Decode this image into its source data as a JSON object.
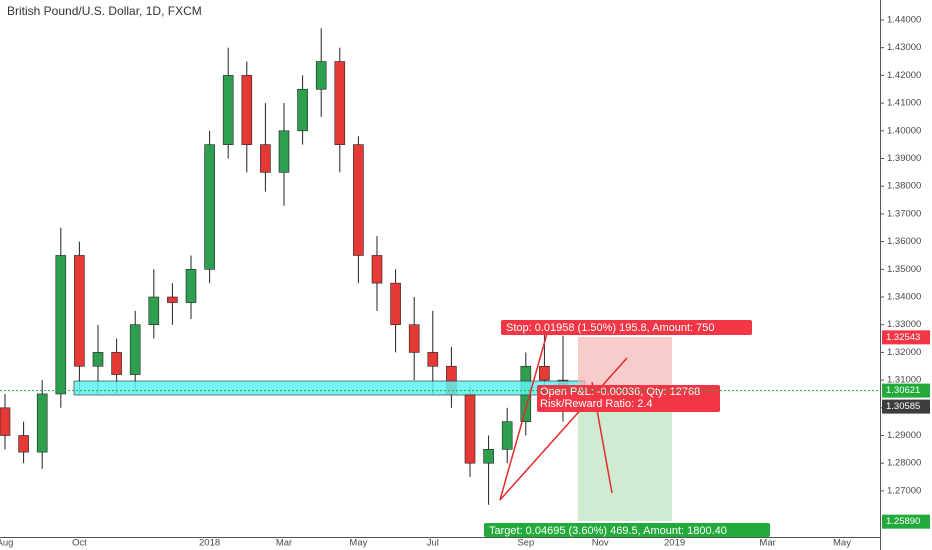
{
  "chart_data": {
    "type": "candlestick",
    "title": "British Pound/U.S. Dollar, 1D, FXCM",
    "categories": [
      "Aug",
      null,
      null,
      null,
      "Oct",
      null,
      null,
      null,
      null,
      null,
      null,
      "2018",
      null,
      null,
      null,
      "Mar",
      null,
      null,
      null,
      "May",
      null,
      null,
      null,
      "Jul",
      null,
      null,
      null,
      null,
      "Sep",
      null,
      null,
      null,
      "Nov",
      null,
      null,
      null,
      "2019",
      null,
      null,
      null,
      null,
      "Mar",
      null,
      null,
      null,
      "May",
      null
    ],
    "open": [
      1.3,
      1.29,
      1.284,
      1.305,
      1.355,
      1.315,
      1.32,
      1.312,
      1.33,
      1.34,
      1.338,
      1.35,
      1.395,
      1.42,
      1.395,
      1.385,
      1.4,
      1.415,
      1.425,
      1.395,
      1.355,
      1.345,
      1.33,
      1.32,
      1.315,
      1.305,
      1.28,
      1.285,
      1.295,
      1.315,
      1.31,
      1.305,
      null,
      null,
      null,
      null,
      null,
      null,
      null,
      null,
      null,
      null,
      null,
      null,
      null,
      null,
      null
    ],
    "high": [
      1.305,
      1.295,
      1.31,
      1.365,
      1.36,
      1.33,
      1.325,
      1.335,
      1.35,
      1.345,
      1.355,
      1.4,
      1.43,
      1.425,
      1.41,
      1.41,
      1.42,
      1.437,
      1.43,
      1.398,
      1.362,
      1.35,
      1.34,
      1.335,
      1.322,
      1.308,
      1.29,
      1.3,
      1.32,
      1.328,
      1.326,
      1.31,
      null,
      null,
      null,
      null,
      null,
      null,
      null,
      null,
      null,
      null,
      null,
      null,
      null,
      null,
      null
    ],
    "low": [
      1.285,
      1.28,
      1.278,
      1.3,
      1.305,
      1.305,
      1.305,
      1.306,
      1.325,
      1.33,
      1.332,
      1.345,
      1.39,
      1.385,
      1.378,
      1.373,
      1.395,
      1.405,
      1.385,
      1.345,
      1.335,
      1.32,
      1.31,
      1.305,
      1.3,
      1.275,
      1.265,
      1.28,
      1.29,
      1.3,
      1.295,
      1.302,
      null,
      null,
      null,
      null,
      null,
      null,
      null,
      null,
      null,
      null,
      null,
      null,
      null,
      null,
      null
    ],
    "close": [
      1.29,
      1.284,
      1.305,
      1.355,
      1.315,
      1.32,
      1.312,
      1.33,
      1.34,
      1.338,
      1.35,
      1.395,
      1.42,
      1.395,
      1.385,
      1.4,
      1.415,
      1.425,
      1.395,
      1.355,
      1.345,
      1.33,
      1.32,
      1.315,
      1.305,
      1.28,
      1.285,
      1.295,
      1.315,
      1.31,
      1.305,
      1.306,
      null,
      null,
      null,
      null,
      null,
      null,
      null,
      null,
      null,
      null,
      null,
      null,
      null,
      null,
      null
    ],
    "up_color": "#2e9e4f",
    "down_color": "#e53935",
    "ylim": [
      1.25336,
      1.44722
    ],
    "yticks": [
      {
        "value": 1.27,
        "label": "1.27000"
      },
      {
        "value": 1.28,
        "label": "1.28000"
      },
      {
        "value": 1.29,
        "label": "1.29000"
      },
      {
        "value": 1.3,
        "label": "1.30000"
      },
      {
        "value": 1.31,
        "label": "1.31000"
      },
      {
        "value": 1.32,
        "label": "1.32000"
      },
      {
        "value": 1.33,
        "label": "1.33000"
      },
      {
        "value": 1.34,
        "label": "1.34000"
      },
      {
        "value": 1.35,
        "label": "1.35000"
      },
      {
        "value": 1.36,
        "label": "1.36000"
      },
      {
        "value": 1.37,
        "label": "1.37000"
      },
      {
        "value": 1.38,
        "label": "1.38000"
      },
      {
        "value": 1.39,
        "label": "1.39000"
      },
      {
        "value": 1.4,
        "label": "1.40000"
      },
      {
        "value": 1.41,
        "label": "1.41000"
      },
      {
        "value": 1.42,
        "label": "1.42000"
      },
      {
        "value": 1.43,
        "label": "1.43000"
      },
      {
        "value": 1.44,
        "label": "1.44000"
      }
    ],
    "price_labels": [
      {
        "value": 1.32543,
        "label": "1.32543",
        "color": "#f23645"
      },
      {
        "value": 1.30621,
        "label": "1.30621",
        "color": "#22ab3a"
      },
      {
        "value": 1.30585,
        "label": "1.30585",
        "color": "#3d3d3d"
      },
      {
        "value": 1.2589,
        "label": "1.25890",
        "color": "#22ab3a"
      }
    ],
    "annotations": [
      "Stop: 0.01958 (1.50%) 195.8, Amount: 750",
      "Open P&L: -0.00036, Qty: 12768",
      "Risk/Reward Ratio: 2.4",
      "Target: 0.04695 (3.60%) 469.5, Amount: 1800.40"
    ]
  }
}
